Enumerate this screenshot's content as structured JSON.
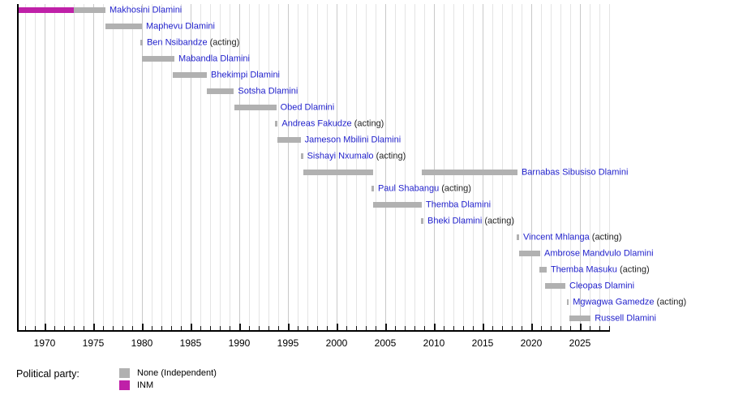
{
  "chart_data": {
    "type": "timeline",
    "description": "Timeline of office holders (gantt-style bars per person, colored by political party)",
    "x_axis": {
      "labeled_ticks": [
        1970,
        1975,
        1980,
        1985,
        1990,
        1995,
        2000,
        2005,
        2010,
        2015,
        2020,
        2025
      ],
      "minor_tick_step_years": 1,
      "range": [
        1967.2,
        2028.1
      ],
      "grid": true
    },
    "party_colors": {
      "None": "#b1b1b1",
      "INM": "#bf21a8"
    },
    "acting_suffix": "(acting)",
    "rows": [
      {
        "name": "Makhosini Dlamini",
        "acting": false,
        "terms": [
          {
            "start": 1967.33,
            "end": 1973.0,
            "party": "INM"
          },
          {
            "start": 1973.0,
            "end": 1976.25,
            "party": "None"
          }
        ]
      },
      {
        "name": "Maphevu Dlamini",
        "acting": false,
        "terms": [
          {
            "start": 1976.25,
            "end": 1980.0,
            "party": "None"
          }
        ]
      },
      {
        "name": "Ben Nsibandze",
        "acting": true,
        "terms": [
          {
            "start": 1979.83,
            "end": 1980.08,
            "party": "None"
          }
        ]
      },
      {
        "name": "Mabandla Dlamini",
        "acting": false,
        "terms": [
          {
            "start": 1980.0,
            "end": 1983.33,
            "party": "None"
          }
        ]
      },
      {
        "name": "Bhekimpi Dlamini",
        "acting": false,
        "terms": [
          {
            "start": 1983.17,
            "end": 1986.67,
            "party": "None"
          }
        ]
      },
      {
        "name": "Sotsha Dlamini",
        "acting": false,
        "terms": [
          {
            "start": 1986.67,
            "end": 1989.45,
            "party": "None"
          }
        ]
      },
      {
        "name": "Obed Dlamini",
        "acting": false,
        "terms": [
          {
            "start": 1989.5,
            "end": 1993.8,
            "party": "None"
          }
        ]
      },
      {
        "name": "Andreas Fakudze",
        "acting": true,
        "terms": [
          {
            "start": 1993.7,
            "end": 1993.95,
            "party": "None"
          }
        ]
      },
      {
        "name": "Jameson Mbilini Dlamini",
        "acting": false,
        "terms": [
          {
            "start": 1993.9,
            "end": 1996.3,
            "party": "None"
          }
        ]
      },
      {
        "name": "Sishayi Nxumalo",
        "acting": true,
        "terms": [
          {
            "start": 1996.3,
            "end": 1996.55,
            "party": "None"
          }
        ]
      },
      {
        "name": "Barnabas Sibusiso Dlamini",
        "acting": false,
        "terms": [
          {
            "start": 1996.55,
            "end": 2003.75,
            "party": "None"
          },
          {
            "start": 2008.75,
            "end": 2018.58,
            "party": "None"
          }
        ]
      },
      {
        "name": "Paul Shabangu",
        "acting": true,
        "terms": [
          {
            "start": 2003.58,
            "end": 2003.83,
            "party": "None"
          }
        ]
      },
      {
        "name": "Themba Dlamini",
        "acting": false,
        "terms": [
          {
            "start": 2003.75,
            "end": 2008.75,
            "party": "None"
          }
        ]
      },
      {
        "name": "Bheki Dlamini",
        "acting": true,
        "terms": [
          {
            "start": 2008.67,
            "end": 2008.92,
            "party": "None"
          }
        ]
      },
      {
        "name": "Vincent Mhlanga",
        "acting": true,
        "terms": [
          {
            "start": 2018.5,
            "end": 2018.75,
            "party": "None"
          }
        ]
      },
      {
        "name": "Ambrose Mandvulo Dlamini",
        "acting": false,
        "terms": [
          {
            "start": 2018.75,
            "end": 2020.92,
            "party": "None"
          }
        ]
      },
      {
        "name": "Themba Masuku",
        "acting": true,
        "terms": [
          {
            "start": 2020.83,
            "end": 2021.58,
            "party": "None"
          }
        ]
      },
      {
        "name": "Cleopas Dlamini",
        "acting": false,
        "terms": [
          {
            "start": 2021.42,
            "end": 2023.5,
            "party": "None"
          }
        ]
      },
      {
        "name": "Mgwagwa Gamedze",
        "acting": true,
        "terms": [
          {
            "start": 2023.67,
            "end": 2023.85,
            "party": "None"
          }
        ]
      },
      {
        "name": "Russell Dlamini",
        "acting": false,
        "terms": [
          {
            "start": 2023.92,
            "end": 2026.1,
            "party": "None"
          }
        ]
      }
    ],
    "legend": {
      "title": "Political party:",
      "entries": [
        {
          "party": "None",
          "label": "None (Independent)"
        },
        {
          "party": "INM",
          "label": "INM"
        }
      ]
    }
  }
}
